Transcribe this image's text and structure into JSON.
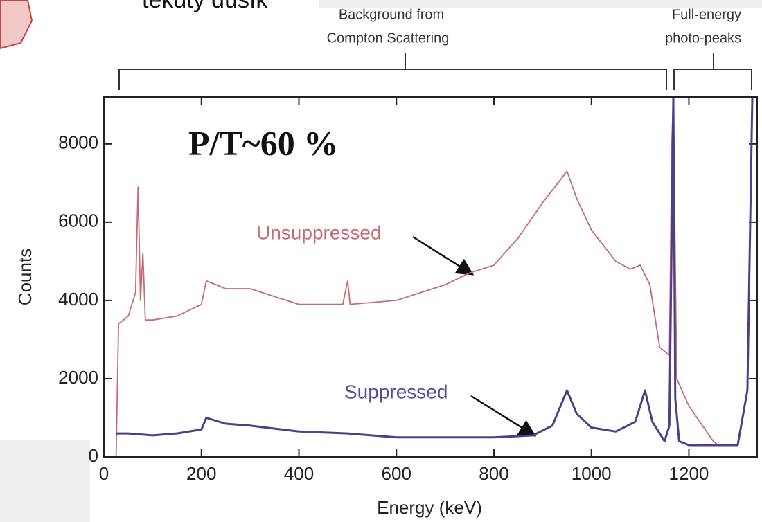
{
  "header_text": "tekutý dusík",
  "chart_data": {
    "type": "line",
    "annotations": {
      "ratio": "P/T~60 %",
      "compton": [
        "Background from",
        "Compton Scattering"
      ],
      "photopeaks": [
        "Full-energy",
        "photo-peaks"
      ],
      "unsuppressed": "Unsuppressed",
      "suppressed": "Suppressed"
    },
    "x_label": "Energy (keV)",
    "y_label": "Counts",
    "xlim": [
      0,
      1340
    ],
    "ylim": [
      0,
      9200
    ],
    "xticks": [
      0,
      200,
      400,
      600,
      800,
      1000,
      1200
    ],
    "yticks": [
      0,
      2000,
      4000,
      6000,
      8000
    ],
    "series": [
      {
        "name": "Unsuppressed",
        "color": "#c86a74",
        "x": [
          25,
          30,
          50,
          65,
          70,
          75,
          80,
          85,
          100,
          150,
          200,
          210,
          250,
          300,
          400,
          490,
          500,
          505,
          600,
          700,
          750,
          800,
          850,
          900,
          950,
          970,
          1000,
          1050,
          1080,
          1100,
          1120,
          1140,
          1160,
          1165,
          1168,
          1172,
          1175,
          1200,
          1250,
          1260
        ],
        "values": [
          0,
          3400,
          3600,
          4200,
          6900,
          4000,
          5200,
          3500,
          3500,
          3600,
          3900,
          4500,
          4300,
          4300,
          3900,
          3900,
          4500,
          3900,
          4000,
          4400,
          4700,
          4900,
          5600,
          6500,
          7300,
          6600,
          5800,
          5000,
          4800,
          4900,
          4400,
          2800,
          2600,
          8000,
          9200,
          5000,
          2000,
          1300,
          400,
          300
        ]
      },
      {
        "name": "Suppressed",
        "color": "#4b3f8c",
        "x": [
          25,
          50,
          100,
          150,
          200,
          210,
          250,
          300,
          400,
          500,
          600,
          700,
          800,
          880,
          920,
          950,
          970,
          1000,
          1050,
          1090,
          1110,
          1125,
          1150,
          1160,
          1168,
          1172,
          1180,
          1200,
          1300,
          1320,
          1330
        ],
        "values": [
          600,
          600,
          550,
          600,
          700,
          1000,
          850,
          800,
          650,
          600,
          500,
          500,
          500,
          550,
          800,
          1700,
          1100,
          750,
          650,
          900,
          1700,
          900,
          400,
          800,
          9200,
          1500,
          400,
          300,
          300,
          1700,
          9200
        ]
      }
    ]
  }
}
